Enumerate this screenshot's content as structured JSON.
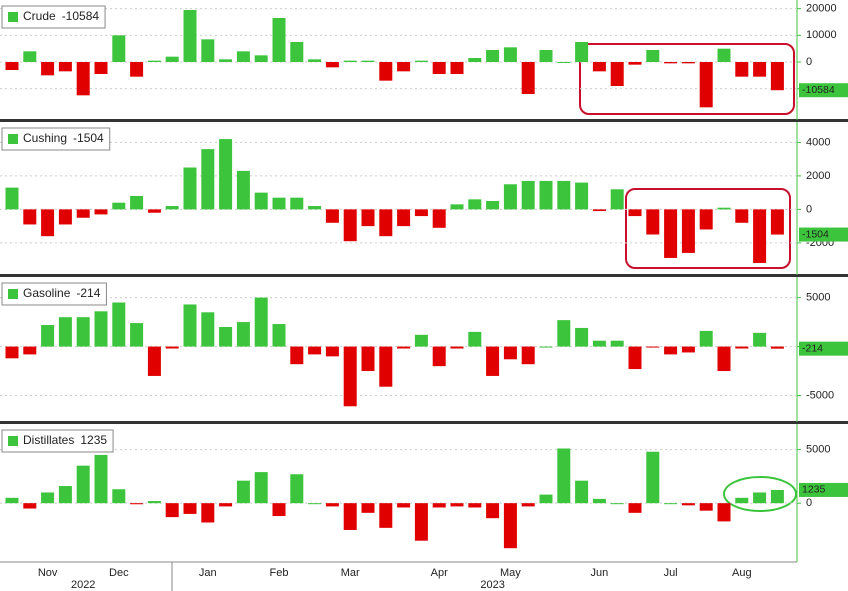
{
  "chart_data": [
    {
      "type": "bar",
      "name": "Crude",
      "positive_color": "#3cc43c",
      "negative_color": "#e00000",
      "grid": true,
      "ylim": [
        -21000,
        22500
      ],
      "yticks": [
        -10000,
        0,
        10000,
        20000
      ],
      "values": [
        -3000,
        4000,
        -5000,
        -3500,
        -12500,
        -4500,
        10000,
        -5500,
        500,
        2000,
        19500,
        8500,
        1000,
        4000,
        2500,
        16500,
        7500,
        1000,
        -2000,
        500,
        500,
        -7000,
        -3500,
        500,
        -4500,
        -4500,
        1500,
        4500,
        5500,
        -12000,
        4500,
        0,
        7500,
        -3500,
        -9000,
        -1000,
        4500,
        -500,
        -500,
        -17000,
        5000,
        -5500,
        -5500,
        -10584
      ]
    },
    {
      "type": "bar",
      "name": "Cushing",
      "positive_color": "#3cc43c",
      "negative_color": "#e00000",
      "grid": true,
      "ylim": [
        -3800,
        5100
      ],
      "yticks": [
        -2000,
        0,
        2000,
        4000
      ],
      "values": [
        1300,
        -900,
        -1600,
        -900,
        -500,
        -300,
        400,
        800,
        -200,
        200,
        2500,
        3600,
        4200,
        2300,
        1000,
        700,
        700,
        200,
        -800,
        -1900,
        -1000,
        -1600,
        -1000,
        -400,
        -1100,
        300,
        600,
        500,
        1500,
        1700,
        1700,
        1700,
        1600,
        -100,
        1200,
        -400,
        -1500,
        -2900,
        -2600,
        -1200,
        100,
        -800,
        -3200,
        -1504
      ]
    },
    {
      "type": "bar",
      "name": "Gasoline",
      "positive_color": "#3cc43c",
      "negative_color": "#e00000",
      "grid": true,
      "ylim": [
        -7500,
        6900
      ],
      "yticks": [
        -5000,
        0,
        5000
      ],
      "values": [
        -1200,
        -800,
        2200,
        3000,
        3000,
        3600,
        4500,
        2400,
        -3000,
        -200,
        4300,
        3500,
        2000,
        2500,
        5000,
        2300,
        -1800,
        -800,
        -1000,
        -6100,
        -2500,
        -4100,
        -200,
        1200,
        -2000,
        -200,
        1500,
        -3000,
        -1300,
        -1800,
        0,
        2700,
        1900,
        600,
        600,
        -2300,
        -100,
        -800,
        -600,
        1600,
        -2500,
        -200,
        1400,
        -214
      ]
    },
    {
      "type": "bar",
      "name": "Distillates",
      "positive_color": "#3cc43c",
      "negative_color": "#e00000",
      "grid": true,
      "ylim": [
        -5300,
        7200
      ],
      "yticks": [
        0,
        5000
      ],
      "values": [
        500,
        -500,
        1000,
        1600,
        3500,
        4500,
        1300,
        -100,
        200,
        -1300,
        -1000,
        -1800,
        -300,
        2100,
        2900,
        -1200,
        2700,
        0,
        -300,
        -2500,
        -900,
        -2300,
        -400,
        -3500,
        -400,
        -300,
        -400,
        -1400,
        -4200,
        -300,
        800,
        5100,
        2100,
        400,
        0,
        -900,
        4800,
        0,
        -200,
        -700,
        -1700,
        500,
        1000,
        1235
      ],
      "categories": [
        null,
        null,
        "Nov",
        null,
        null,
        null,
        "Dec",
        null,
        null,
        null,
        null,
        "Jan",
        null,
        null,
        null,
        "Feb",
        null,
        null,
        null,
        "Mar",
        null,
        null,
        null,
        null,
        "Apr",
        null,
        null,
        null,
        "May",
        null,
        null,
        null,
        null,
        "Jun",
        null,
        null,
        null,
        "Jul",
        null,
        null,
        null,
        "Aug",
        null,
        null
      ],
      "year_categories": [
        null,
        null,
        null,
        null,
        "2022",
        null,
        null,
        null,
        null,
        null,
        null,
        null,
        null,
        null,
        null,
        null,
        null,
        null,
        null,
        null,
        null,
        null,
        null,
        null,
        null,
        null,
        null,
        "2023",
        null,
        null,
        null,
        null,
        null,
        null,
        null,
        null,
        null,
        null,
        null,
        null,
        null,
        null,
        null,
        null
      ]
    }
  ]
}
